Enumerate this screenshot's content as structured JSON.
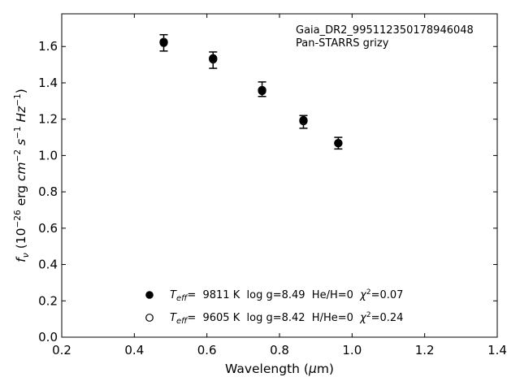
{
  "chart_data": {
    "type": "scatter",
    "annotation": [
      "Gaia_DR2_995112350178946048",
      "Pan-STARRS grizy"
    ],
    "xlabel": {
      "prefix": "Wavelength (",
      "sym": "μ",
      "suffix": "m)"
    },
    "ylabel": {
      "f": "f",
      "fsub": "ν",
      "open": " (10",
      "exp1": "−26",
      "erg": " erg ",
      "cm": "cm",
      "exp2": "−2",
      "s": " s",
      "exp3": "−1",
      "hz": " Hz",
      "exp4": "−1",
      "close": ")"
    },
    "xlim": [
      0.2,
      1.4
    ],
    "ylim": [
      0.0,
      1.78
    ],
    "xticks": [
      "0.2",
      "0.4",
      "0.6",
      "0.8",
      "1.0",
      "1.2",
      "1.4"
    ],
    "yticks": [
      "0.0",
      "0.2",
      "0.4",
      "0.6",
      "0.8",
      "1.0",
      "1.2",
      "1.4",
      "1.6"
    ],
    "observed": {
      "x": [
        0.481,
        0.617,
        0.752,
        0.866,
        0.962
      ],
      "y": [
        1.62,
        1.525,
        1.365,
        1.185,
        1.068
      ],
      "err": [
        0.045,
        0.045,
        0.04,
        0.035,
        0.032
      ]
    },
    "series": [
      {
        "marker": "filled-circle",
        "x": [
          0.481,
          0.617,
          0.752,
          0.866,
          0.962
        ],
        "y": [
          1.62,
          1.535,
          1.355,
          1.195,
          1.068
        ]
      },
      {
        "marker": "open-circle",
        "x": [
          0.481,
          0.617,
          0.752,
          0.866,
          0.962
        ],
        "y": [
          1.625,
          1.53,
          1.36,
          1.19,
          1.068
        ]
      }
    ],
    "legend": [
      {
        "marker": "filled",
        "t": "T",
        "tsub": "eff",
        "eq": "=",
        "rest": "  9811 K  log g=8.49  He/H=0  ",
        "chi": "χ",
        "chiexp": "2",
        "chival": "=0.07"
      },
      {
        "marker": "open",
        "t": "T",
        "tsub": "eff",
        "eq": "=",
        "rest": "  9605 K  log g=8.42  H/He=0  ",
        "chi": "χ",
        "chiexp": "2",
        "chival": "=0.24"
      }
    ],
    "legend_position": "lower-center",
    "grid": false,
    "colors": {
      "marker": "#000000",
      "background": "#ffffff",
      "axes": "#000000"
    }
  }
}
